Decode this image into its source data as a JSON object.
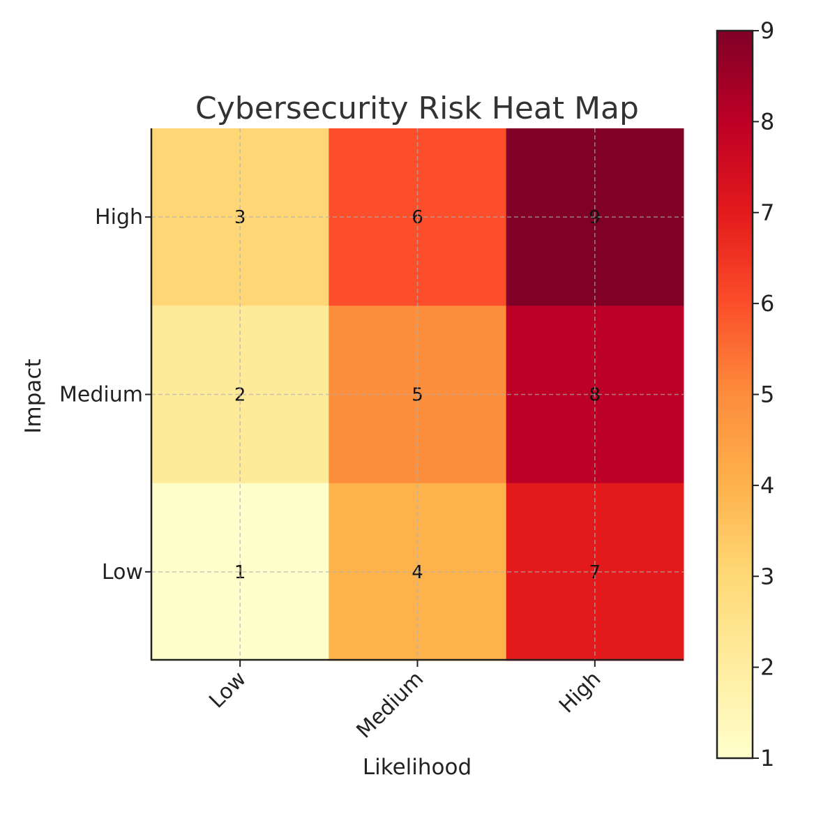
{
  "chart_data": {
    "type": "heatmap",
    "title": "Cybersecurity Risk Heat Map",
    "xlabel": "Likelihood",
    "ylabel": "Impact",
    "x_categories": [
      "Low",
      "Medium",
      "High"
    ],
    "y_categories": [
      "High",
      "Medium",
      "Low"
    ],
    "values": [
      [
        3,
        6,
        9
      ],
      [
        2,
        5,
        8
      ],
      [
        1,
        4,
        7
      ]
    ],
    "cell_colors": [
      [
        "#fed676",
        "#fc4e2a",
        "#800026"
      ],
      [
        "#feeb9a",
        "#fd8e3c",
        "#bd0026"
      ],
      [
        "#ffffcc",
        "#feb24c",
        "#e31a1c"
      ]
    ],
    "colorbar": {
      "range": [
        1,
        9
      ],
      "ticks": [
        "1",
        "2",
        "3",
        "4",
        "5",
        "6",
        "7",
        "8",
        "9"
      ],
      "colormap": "YlOrRd",
      "colors": [
        "#ffffcc",
        "#ffeda0",
        "#fed976",
        "#feb24c",
        "#fd8d3c",
        "#fc4e2a",
        "#e31a1c",
        "#bd0026",
        "#800026"
      ]
    },
    "grid": true,
    "legend": "none"
  }
}
